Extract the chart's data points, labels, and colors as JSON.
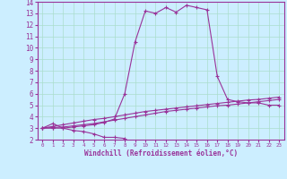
{
  "xlabel": "Windchill (Refroidissement éolien,°C)",
  "background_color": "#cceeff",
  "grid_color": "#aaddcc",
  "line_color": "#993399",
  "xlim": [
    -0.5,
    23.5
  ],
  "ylim": [
    2,
    14
  ],
  "xticks": [
    0,
    1,
    2,
    3,
    4,
    5,
    6,
    7,
    8,
    9,
    10,
    11,
    12,
    13,
    14,
    15,
    16,
    17,
    18,
    19,
    20,
    21,
    22,
    23
  ],
  "yticks": [
    2,
    3,
    4,
    5,
    6,
    7,
    8,
    9,
    10,
    11,
    12,
    13,
    14
  ],
  "series": [
    {
      "x": [
        0,
        1,
        2,
        3,
        4,
        5,
        6,
        7,
        8
      ],
      "y": [
        3.0,
        3.4,
        3.0,
        2.8,
        2.7,
        2.5,
        2.2,
        2.2,
        2.1
      ]
    },
    {
      "x": [
        0,
        1,
        2,
        3,
        4,
        5,
        6,
        7,
        8,
        9,
        10,
        11,
        12,
        13,
        14,
        15,
        16,
        17,
        18,
        19,
        20,
        21,
        22,
        23
      ],
      "y": [
        3.0,
        3.15,
        3.3,
        3.45,
        3.6,
        3.75,
        3.85,
        4.0,
        4.15,
        4.3,
        4.45,
        4.55,
        4.65,
        4.75,
        4.85,
        4.95,
        5.05,
        5.15,
        5.25,
        5.35,
        5.45,
        5.5,
        5.6,
        5.7
      ]
    },
    {
      "x": [
        0,
        1,
        2,
        3,
        4,
        5,
        6,
        7,
        8,
        9,
        10,
        11,
        12,
        13,
        14,
        15,
        16,
        17,
        18,
        19,
        20,
        21,
        22,
        23
      ],
      "y": [
        3.0,
        3.05,
        3.1,
        3.2,
        3.3,
        3.4,
        3.55,
        3.7,
        3.85,
        4.0,
        4.15,
        4.3,
        4.45,
        4.55,
        4.65,
        4.75,
        4.85,
        4.95,
        5.0,
        5.1,
        5.2,
        5.3,
        5.4,
        5.5
      ]
    },
    {
      "x": [
        0,
        1,
        2,
        3,
        4,
        5,
        6,
        7,
        8,
        9,
        10,
        11,
        12,
        13,
        14,
        15,
        16,
        17,
        18,
        19,
        20,
        21,
        22,
        23
      ],
      "y": [
        3.0,
        3.0,
        3.0,
        3.1,
        3.2,
        3.3,
        3.5,
        3.8,
        6.0,
        10.5,
        13.2,
        13.0,
        13.5,
        13.1,
        13.7,
        13.5,
        13.3,
        7.5,
        5.5,
        5.3,
        5.2,
        5.2,
        5.0,
        5.0
      ]
    }
  ]
}
